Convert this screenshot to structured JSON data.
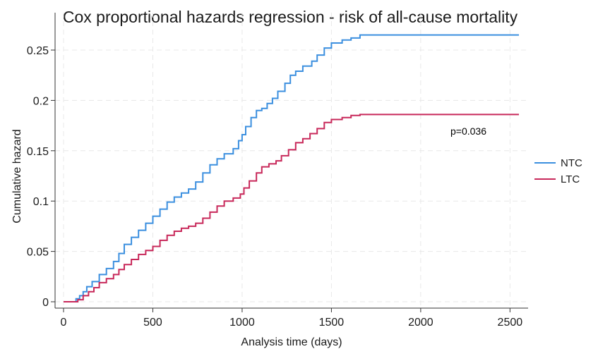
{
  "chart_data": {
    "type": "line",
    "step": true,
    "title": "Cox proportional hazards regression - risk of all-cause mortality",
    "xlabel": "Analysis time (days)",
    "ylabel": "Cumulative hazard",
    "xlim": [
      0,
      2550
    ],
    "ylim": [
      0,
      0.265
    ],
    "x_ticks": [
      0,
      500,
      1000,
      1500,
      2000,
      2500
    ],
    "x_tick_labels": [
      "0",
      "500",
      "1000",
      "1500",
      "2000",
      "2500"
    ],
    "y_ticks": [
      0,
      0.05,
      0.1,
      0.15,
      0.2,
      0.25
    ],
    "y_tick_labels": [
      "0",
      "0.05",
      "0.1",
      "0.15",
      "0.2",
      "0.25"
    ],
    "grid": true,
    "legend_position": "right",
    "annotation": "p=0.036",
    "series": [
      {
        "name": "NTC",
        "color": "#3b8fdf",
        "points": [
          [
            0,
            0
          ],
          [
            60,
            0
          ],
          [
            70,
            0.003
          ],
          [
            90,
            0.006
          ],
          [
            110,
            0.01
          ],
          [
            130,
            0.015
          ],
          [
            160,
            0.02
          ],
          [
            200,
            0.027
          ],
          [
            240,
            0.033
          ],
          [
            280,
            0.04
          ],
          [
            310,
            0.048
          ],
          [
            340,
            0.057
          ],
          [
            380,
            0.064
          ],
          [
            420,
            0.071
          ],
          [
            460,
            0.078
          ],
          [
            500,
            0.085
          ],
          [
            540,
            0.092
          ],
          [
            580,
            0.099
          ],
          [
            620,
            0.104
          ],
          [
            660,
            0.108
          ],
          [
            700,
            0.112
          ],
          [
            740,
            0.119
          ],
          [
            780,
            0.128
          ],
          [
            820,
            0.136
          ],
          [
            860,
            0.142
          ],
          [
            900,
            0.147
          ],
          [
            950,
            0.152
          ],
          [
            980,
            0.16
          ],
          [
            1000,
            0.166
          ],
          [
            1020,
            0.174
          ],
          [
            1050,
            0.183
          ],
          [
            1080,
            0.19
          ],
          [
            1110,
            0.192
          ],
          [
            1140,
            0.197
          ],
          [
            1170,
            0.202
          ],
          [
            1200,
            0.209
          ],
          [
            1240,
            0.217
          ],
          [
            1270,
            0.225
          ],
          [
            1300,
            0.229
          ],
          [
            1340,
            0.234
          ],
          [
            1390,
            0.239
          ],
          [
            1420,
            0.245
          ],
          [
            1460,
            0.252
          ],
          [
            1500,
            0.257
          ],
          [
            1560,
            0.26
          ],
          [
            1610,
            0.262
          ],
          [
            1660,
            0.265
          ],
          [
            2550,
            0.265
          ]
        ]
      },
      {
        "name": "LTC",
        "color": "#c8285a",
        "points": [
          [
            0,
            0
          ],
          [
            60,
            0
          ],
          [
            80,
            0.002
          ],
          [
            110,
            0.006
          ],
          [
            140,
            0.01
          ],
          [
            170,
            0.014
          ],
          [
            200,
            0.019
          ],
          [
            240,
            0.023
          ],
          [
            280,
            0.027
          ],
          [
            310,
            0.032
          ],
          [
            340,
            0.037
          ],
          [
            380,
            0.042
          ],
          [
            420,
            0.047
          ],
          [
            460,
            0.051
          ],
          [
            500,
            0.055
          ],
          [
            540,
            0.061
          ],
          [
            580,
            0.066
          ],
          [
            620,
            0.07
          ],
          [
            660,
            0.073
          ],
          [
            700,
            0.075
          ],
          [
            740,
            0.078
          ],
          [
            780,
            0.083
          ],
          [
            820,
            0.089
          ],
          [
            860,
            0.095
          ],
          [
            900,
            0.1
          ],
          [
            950,
            0.103
          ],
          [
            990,
            0.107
          ],
          [
            1010,
            0.113
          ],
          [
            1040,
            0.12
          ],
          [
            1080,
            0.128
          ],
          [
            1110,
            0.134
          ],
          [
            1150,
            0.137
          ],
          [
            1190,
            0.14
          ],
          [
            1220,
            0.145
          ],
          [
            1260,
            0.151
          ],
          [
            1300,
            0.158
          ],
          [
            1340,
            0.162
          ],
          [
            1380,
            0.167
          ],
          [
            1420,
            0.172
          ],
          [
            1460,
            0.178
          ],
          [
            1500,
            0.181
          ],
          [
            1560,
            0.183
          ],
          [
            1610,
            0.185
          ],
          [
            1660,
            0.186
          ],
          [
            2550,
            0.186
          ]
        ]
      }
    ]
  }
}
